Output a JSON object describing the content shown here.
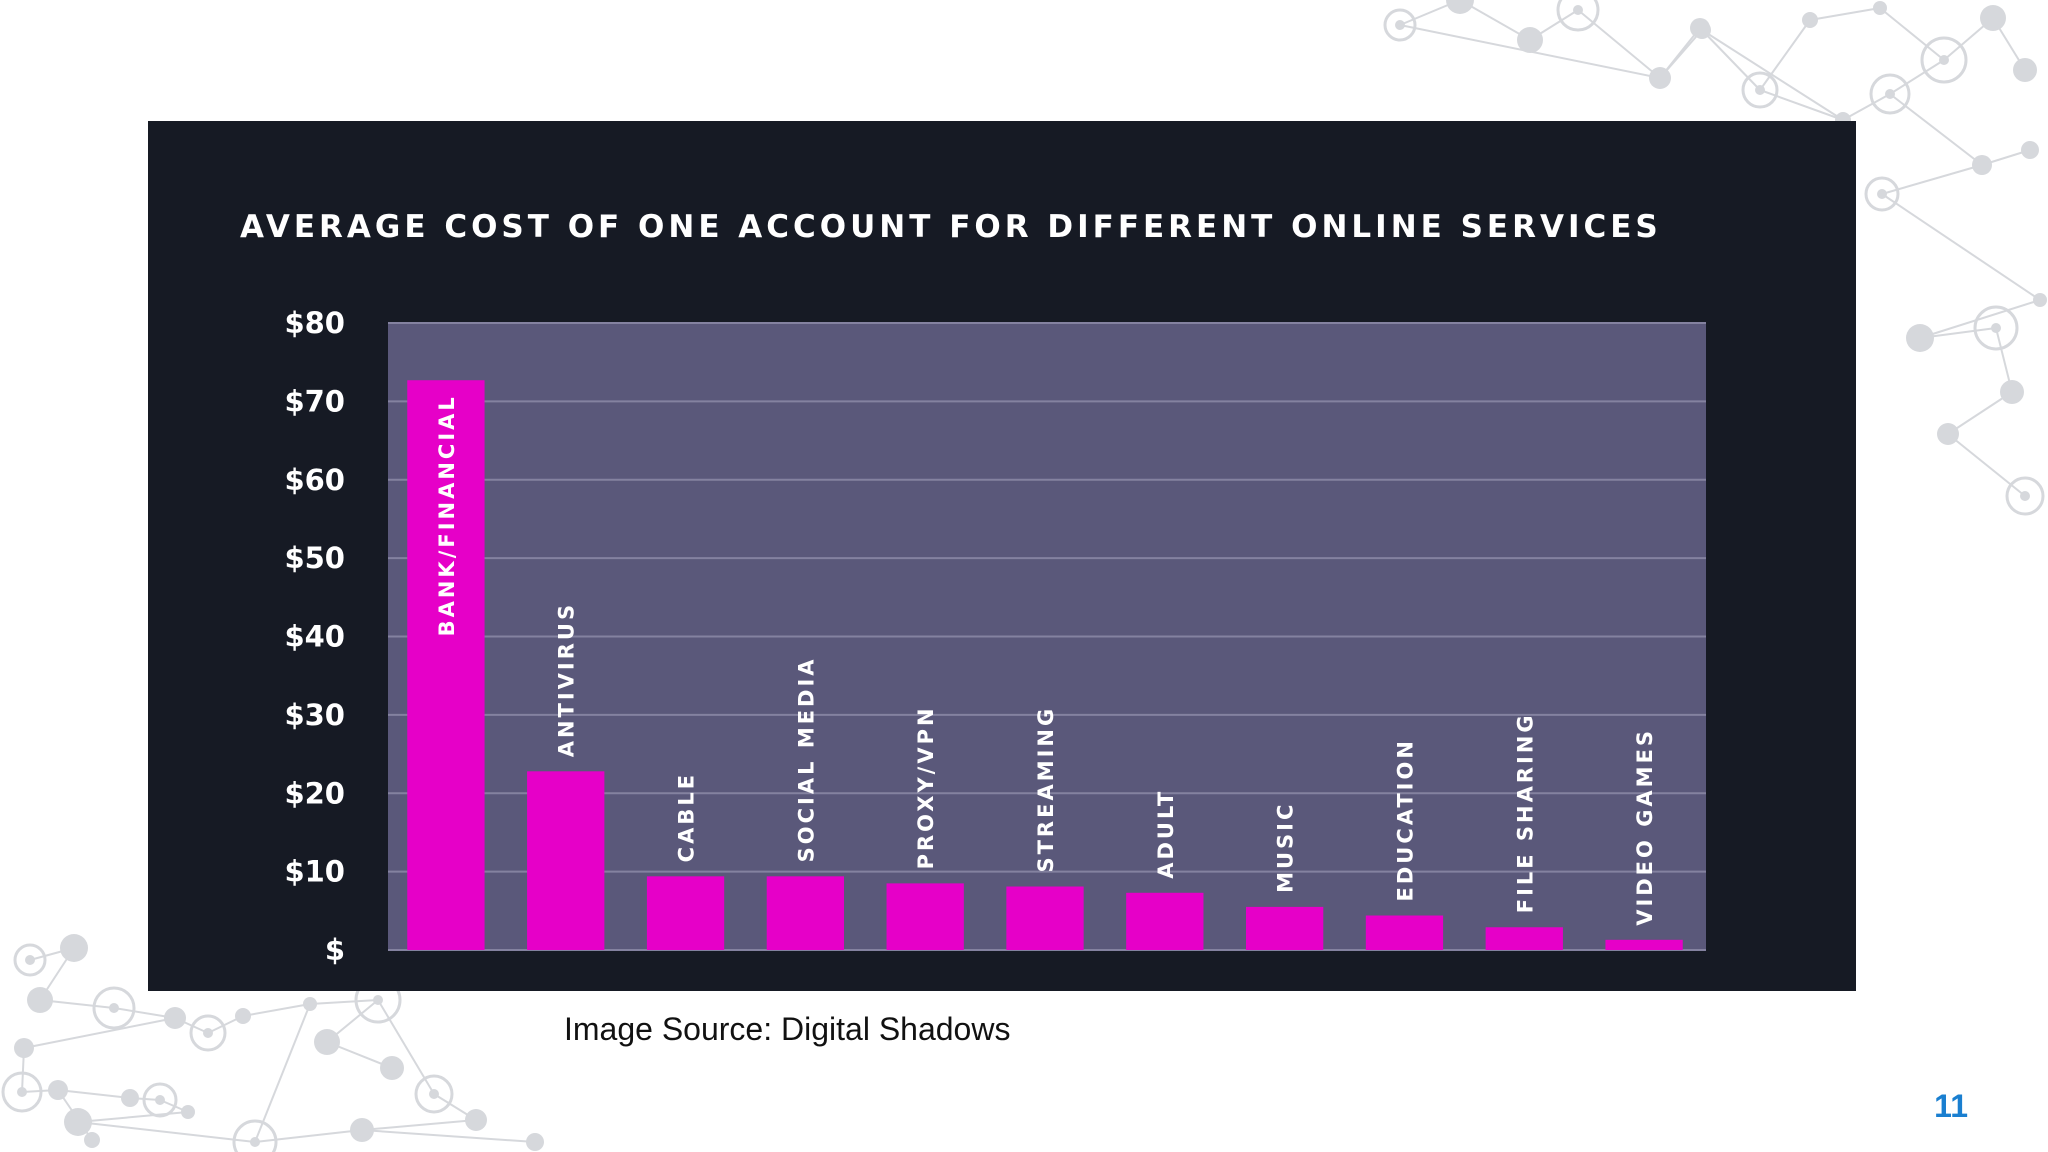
{
  "slide": {
    "image_source": "Image Source: Digital Shadows",
    "page_number": "11"
  },
  "colors": {
    "panel_bg": "#161a24",
    "plot_bg": "#5a587a",
    "bar": "#e600c8",
    "gridline": "#8482a0",
    "text": "#ffffff",
    "page_number": "#1a7fd0",
    "decor": "#d6d8dc"
  },
  "chart_data": {
    "type": "bar",
    "title": "AVERAGE COST OF ONE ACCOUNT FOR DIFFERENT ONLINE SERVICES",
    "xlabel": "",
    "ylabel": "",
    "ylim": [
      0,
      80
    ],
    "yticks": [
      0,
      10,
      20,
      30,
      40,
      50,
      60,
      70,
      80
    ],
    "ytick_labels": [
      "$",
      "$10",
      "$20",
      "$30",
      "$40",
      "$50",
      "$60",
      "$70",
      "$80"
    ],
    "grid": true,
    "categories": [
      "BANK/FINANCIAL",
      "ANTIVIRUS",
      "CABLE",
      "SOCIAL MEDIA",
      "PROXY/VPN",
      "STREAMING",
      "ADULT",
      "MUSIC",
      "EDUCATION",
      "FILE SHARING",
      "VIDEO GAMES"
    ],
    "values": [
      72.7,
      22.8,
      9.4,
      9.4,
      8.5,
      8.1,
      7.3,
      5.5,
      4.4,
      2.9,
      1.3
    ],
    "label_position": "inside bar top for the tallest bar, above bar otherwise, rotated vertical"
  }
}
